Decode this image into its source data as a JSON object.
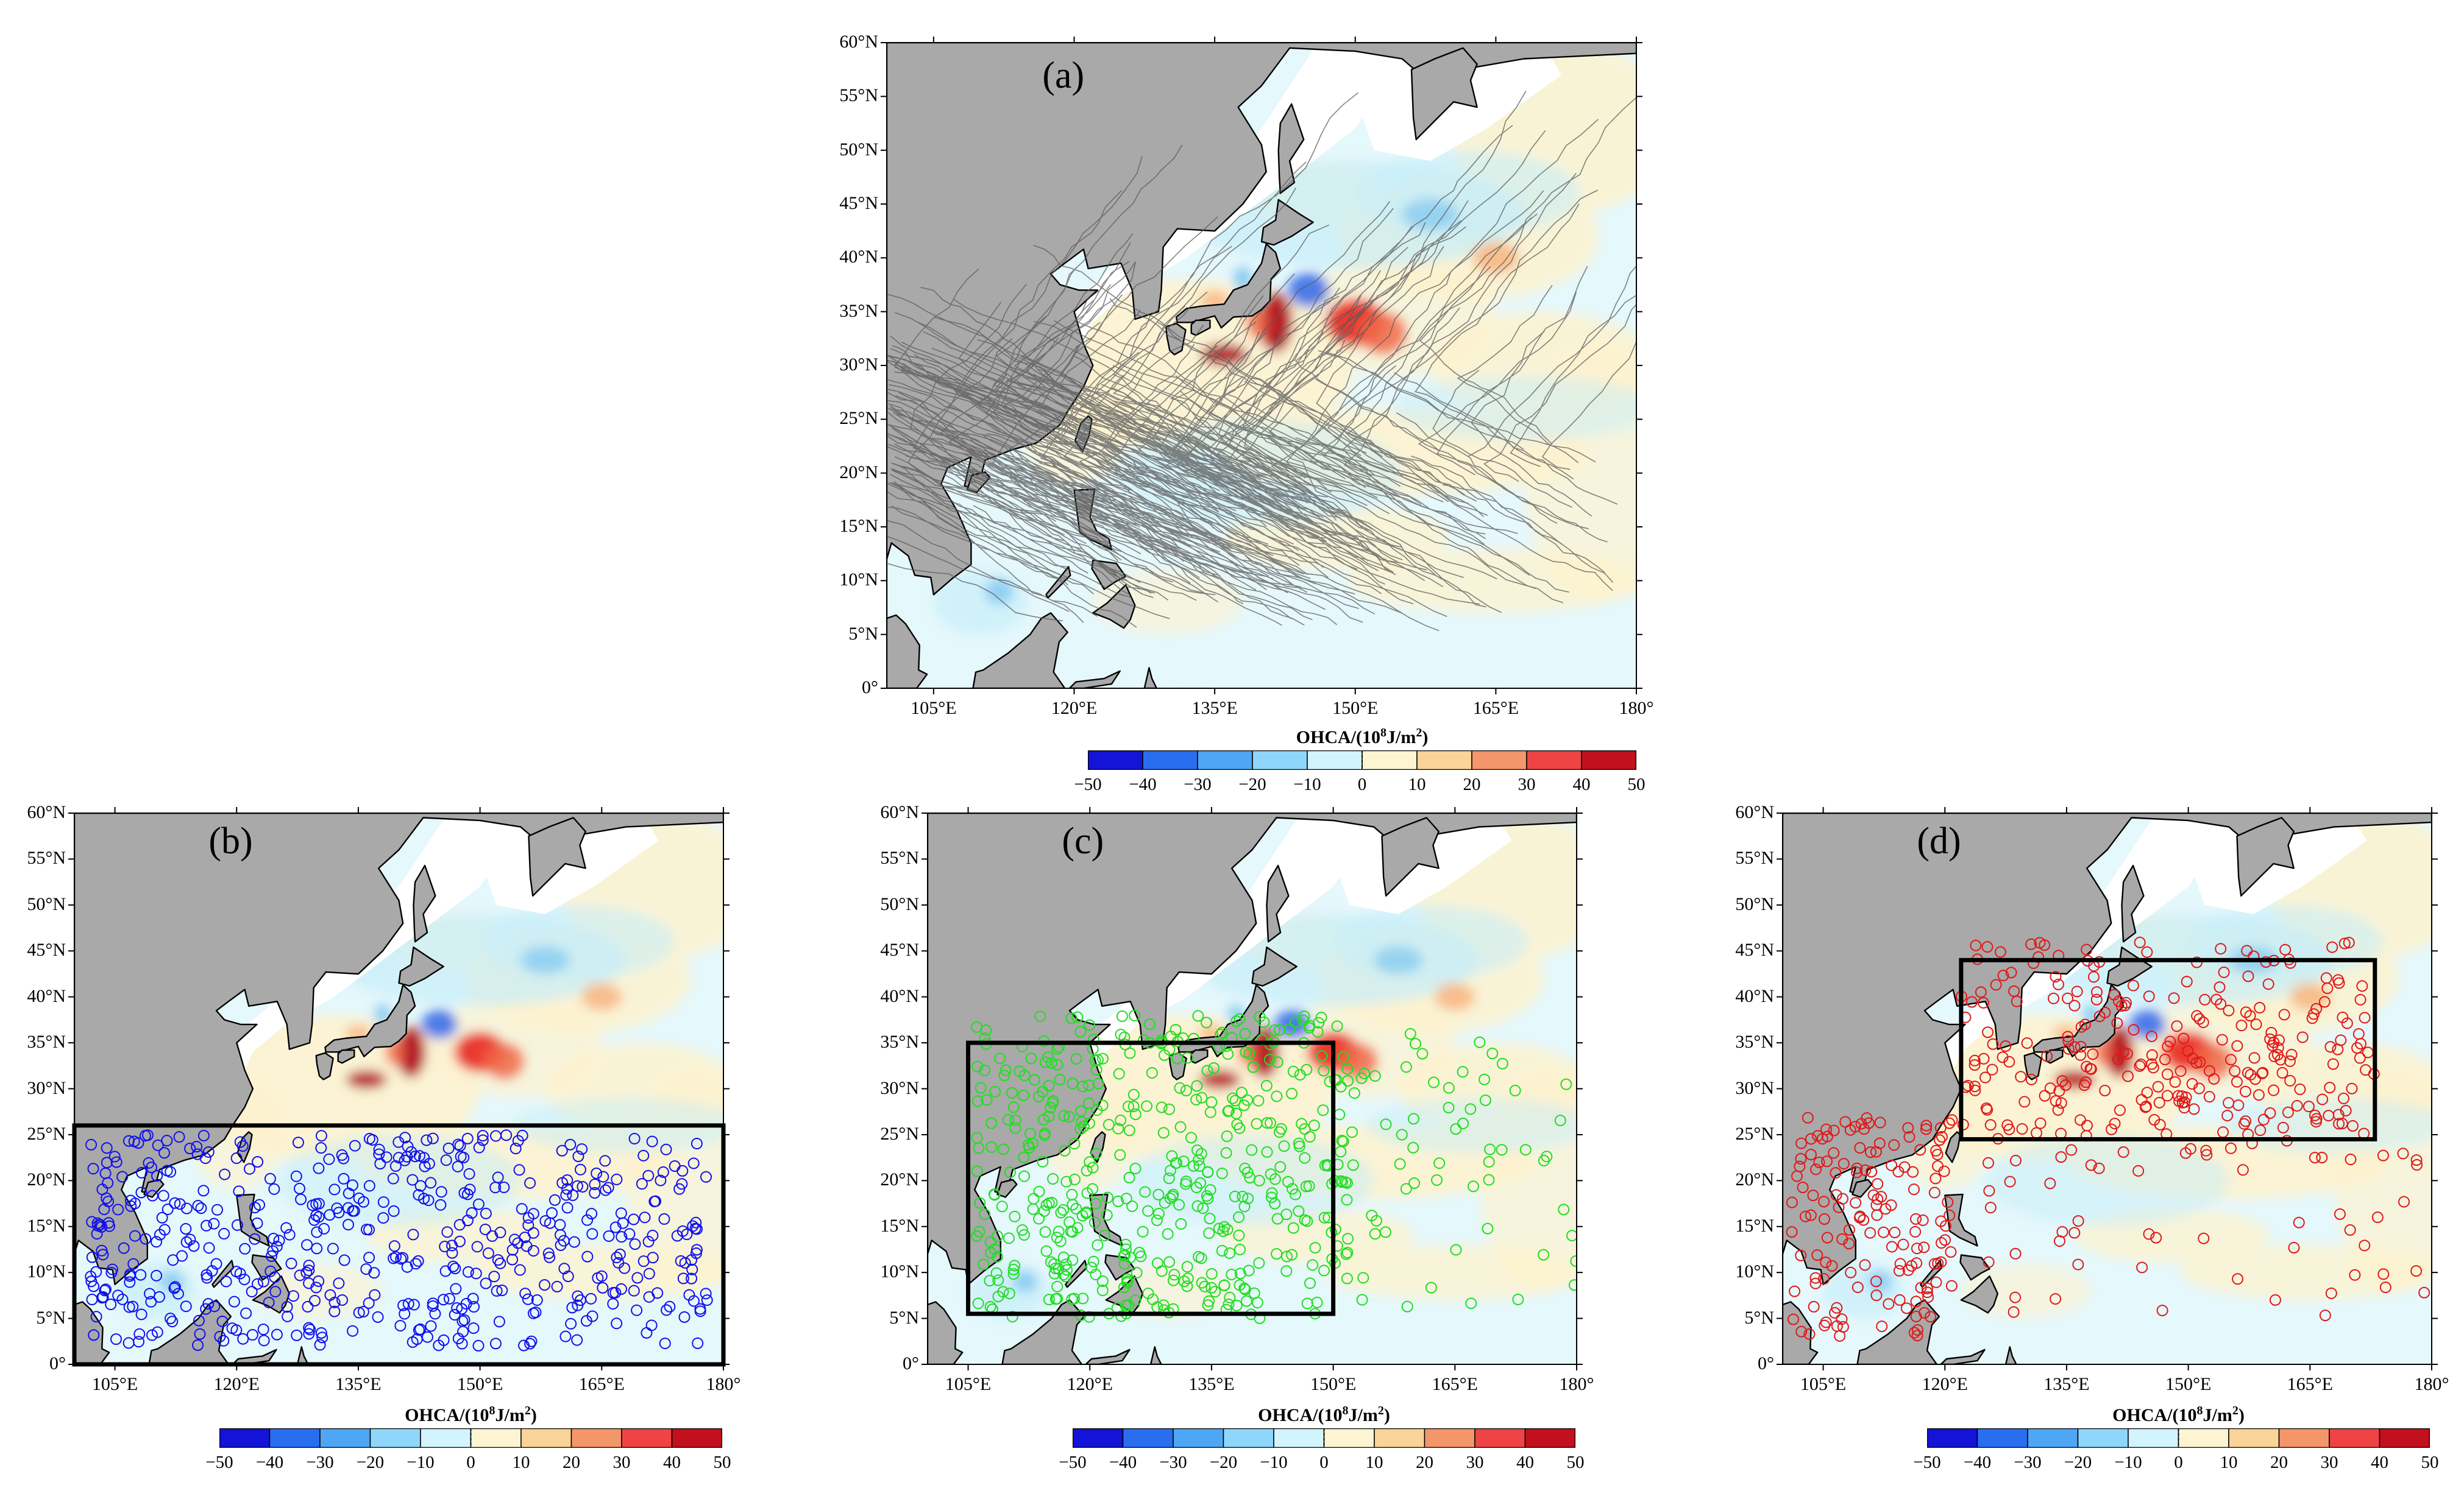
{
  "figure": {
    "panels": [
      {
        "id": "a",
        "label": "(a)",
        "marker": "tracks",
        "marker_color": "#5a5a5a",
        "box": null
      },
      {
        "id": "b",
        "label": "(b)",
        "marker": "circles",
        "marker_color": "#1010ee",
        "box": {
          "lon": [
            100,
            180
          ],
          "lat": [
            0,
            26
          ]
        }
      },
      {
        "id": "c",
        "label": "(c)",
        "marker": "circles",
        "marker_color": "#22dd22",
        "box": {
          "lon": [
            105,
            150
          ],
          "lat": [
            5.5,
            35
          ]
        }
      },
      {
        "id": "d",
        "label": "(d)",
        "marker": "circles",
        "marker_color": "#e01818",
        "box": {
          "lon": [
            122,
            173
          ],
          "lat": [
            24.5,
            44
          ]
        }
      }
    ],
    "map": {
      "lon_range": [
        100,
        180
      ],
      "lat_range": [
        0,
        60
      ],
      "x_ticks": [
        "105°E",
        "120°E",
        "135°E",
        "150°E",
        "165°E",
        "180°"
      ],
      "y_ticks": [
        "0°",
        "5°N",
        "10°N",
        "15°N",
        "20°N",
        "25°N",
        "30°N",
        "35°N",
        "40°N",
        "45°N",
        "50°N",
        "55°N",
        "60°N"
      ]
    },
    "colorbar": {
      "title_prefix": "OHCA/(10",
      "title_sup1": "8",
      "title_mid": "J/m",
      "title_sup2": "2",
      "title_suffix": ")",
      "ticks": [
        "−50",
        "−40",
        "−30",
        "−20",
        "−10",
        "0",
        "10",
        "20",
        "30",
        "40",
        "50"
      ],
      "colors": [
        "#1414d8",
        "#2a6ef0",
        "#4ea6f5",
        "#8fd6fb",
        "#d2f4fc",
        "#fdf5d2",
        "#fad399",
        "#f3966a",
        "#ee4444",
        "#c3101e"
      ]
    },
    "colors": {
      "land": "#a9a9a9",
      "ocean_neutral": "#e5f8fc",
      "warm": "#fdf2cf",
      "hot": "#e8281e",
      "cold": "#3b6ee6"
    }
  }
}
